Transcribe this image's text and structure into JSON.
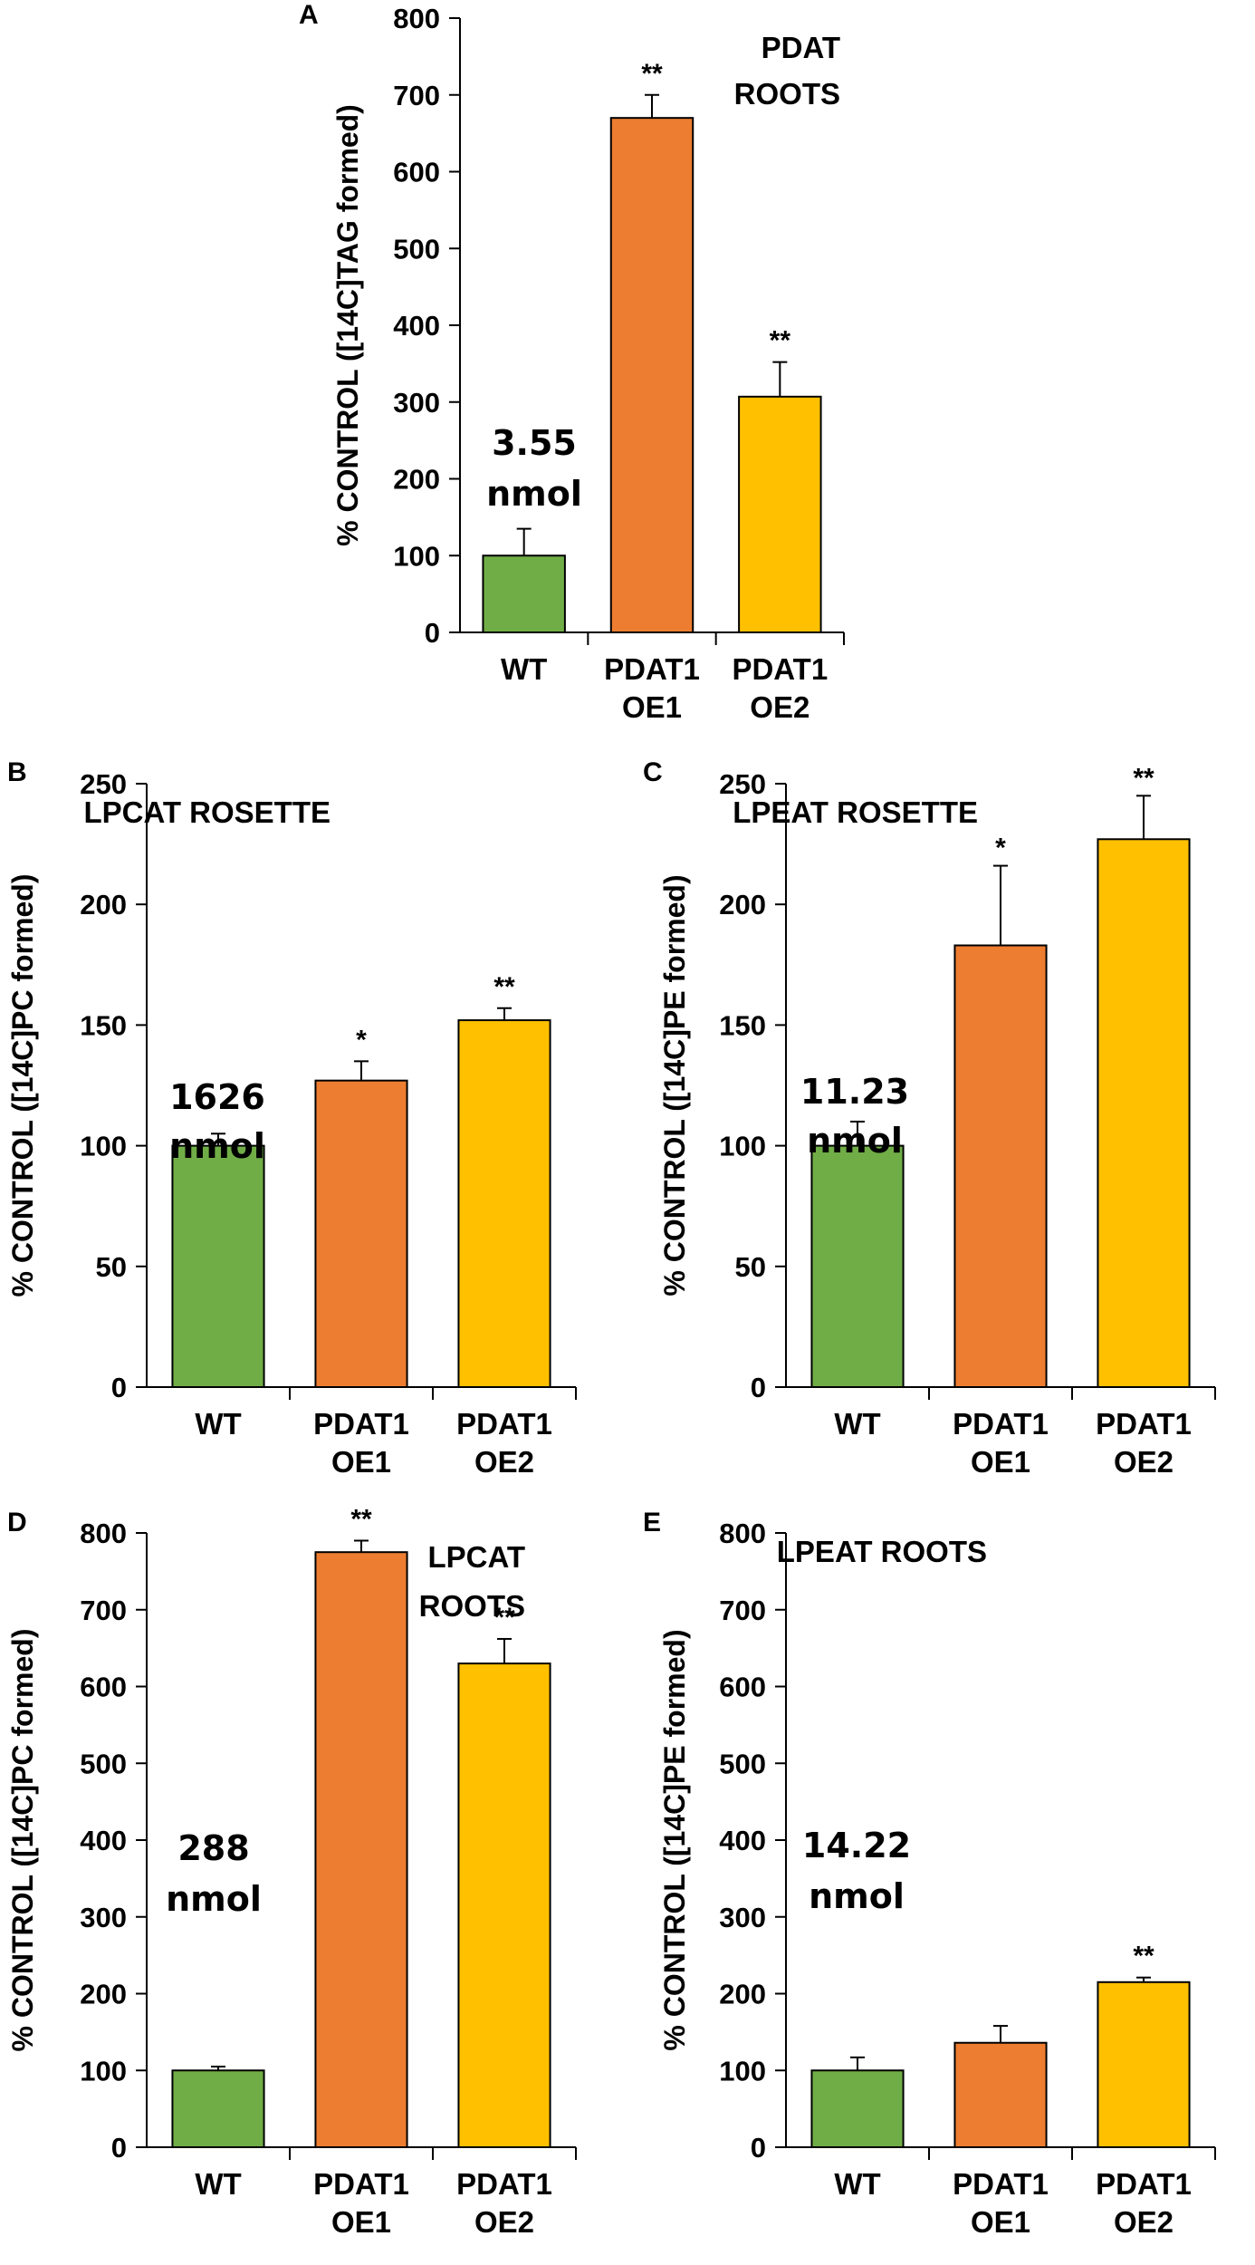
{
  "colors": {
    "WT": "#70ad47",
    "PDAT1 OE1": "#ed7d31",
    "PDAT1 OE2": "#ffc000",
    "bar_outline": "#000000",
    "axis": "#000000"
  },
  "chart_data": [
    {
      "id": "A",
      "letter": "A",
      "type": "bar",
      "title_lines": [
        "PDAT",
        "ROOTS"
      ],
      "ylabel": "% CONTROL ([14C]TAG formed)",
      "ylim": [
        0,
        800
      ],
      "yticks": [
        0,
        100,
        200,
        300,
        400,
        500,
        600,
        700,
        800
      ],
      "categories": [
        [
          "WT"
        ],
        [
          "PDAT1",
          "OE1"
        ],
        [
          "PDAT1",
          "OE2"
        ]
      ],
      "values": [
        100,
        670,
        307
      ],
      "errors": [
        35,
        30,
        45
      ],
      "significance": [
        "",
        "**",
        "**"
      ],
      "annotation_lines": [
        "3.55",
        "nmol"
      ]
    },
    {
      "id": "B",
      "letter": "B",
      "type": "bar",
      "title_lines": [
        "LPCAT ROSETTE"
      ],
      "ylabel": "% CONTROL ([14C]PC formed)",
      "ylim": [
        0,
        250
      ],
      "yticks": [
        0,
        50,
        100,
        150,
        200,
        250
      ],
      "categories": [
        [
          "WT"
        ],
        [
          "PDAT1",
          "OE1"
        ],
        [
          "PDAT1",
          "OE2"
        ]
      ],
      "values": [
        100,
        127,
        152
      ],
      "errors": [
        5,
        8,
        5
      ],
      "significance": [
        "",
        "*",
        "**"
      ],
      "annotation_lines": [
        "1626",
        "nmol"
      ]
    },
    {
      "id": "C",
      "letter": "C",
      "type": "bar",
      "title_lines": [
        "LPEAT ROSETTE"
      ],
      "ylabel": "% CONTROL ([14C]PE formed)",
      "ylim": [
        0,
        250
      ],
      "yticks": [
        0,
        50,
        100,
        150,
        200,
        250
      ],
      "categories": [
        [
          "WT"
        ],
        [
          "PDAT1",
          "OE1"
        ],
        [
          "PDAT1",
          "OE2"
        ]
      ],
      "values": [
        100,
        183,
        227
      ],
      "errors": [
        10,
        33,
        18
      ],
      "significance": [
        "",
        "*",
        "**"
      ],
      "annotation_lines": [
        "11.23",
        "nmol"
      ]
    },
    {
      "id": "D",
      "letter": "D",
      "type": "bar",
      "title_lines": [
        "LPCAT",
        "ROOTS"
      ],
      "ylabel": "% CONTROL ([14C]PC formed)",
      "ylim": [
        0,
        800
      ],
      "yticks": [
        0,
        100,
        200,
        300,
        400,
        500,
        600,
        700,
        800
      ],
      "categories": [
        [
          "WT"
        ],
        [
          "PDAT1",
          "OE1"
        ],
        [
          "PDAT1",
          "OE2"
        ]
      ],
      "values": [
        100,
        775,
        630
      ],
      "errors": [
        5,
        15,
        32
      ],
      "significance": [
        "",
        "**",
        "**"
      ],
      "annotation_lines": [
        "288",
        "nmol"
      ]
    },
    {
      "id": "E",
      "letter": "E",
      "type": "bar",
      "title_lines": [
        "LPEAT ROOTS"
      ],
      "ylabel": "% CONTROL ([14C]PE formed)",
      "ylim": [
        0,
        800
      ],
      "yticks": [
        0,
        100,
        200,
        300,
        400,
        500,
        600,
        700,
        800
      ],
      "categories": [
        [
          "WT"
        ],
        [
          "PDAT1",
          "OE1"
        ],
        [
          "PDAT1",
          "OE2"
        ]
      ],
      "values": [
        100,
        136,
        215
      ],
      "errors": [
        17,
        22,
        6
      ],
      "significance": [
        "",
        "",
        "**"
      ],
      "annotation_lines": [
        "14.22",
        "nmol"
      ]
    }
  ]
}
